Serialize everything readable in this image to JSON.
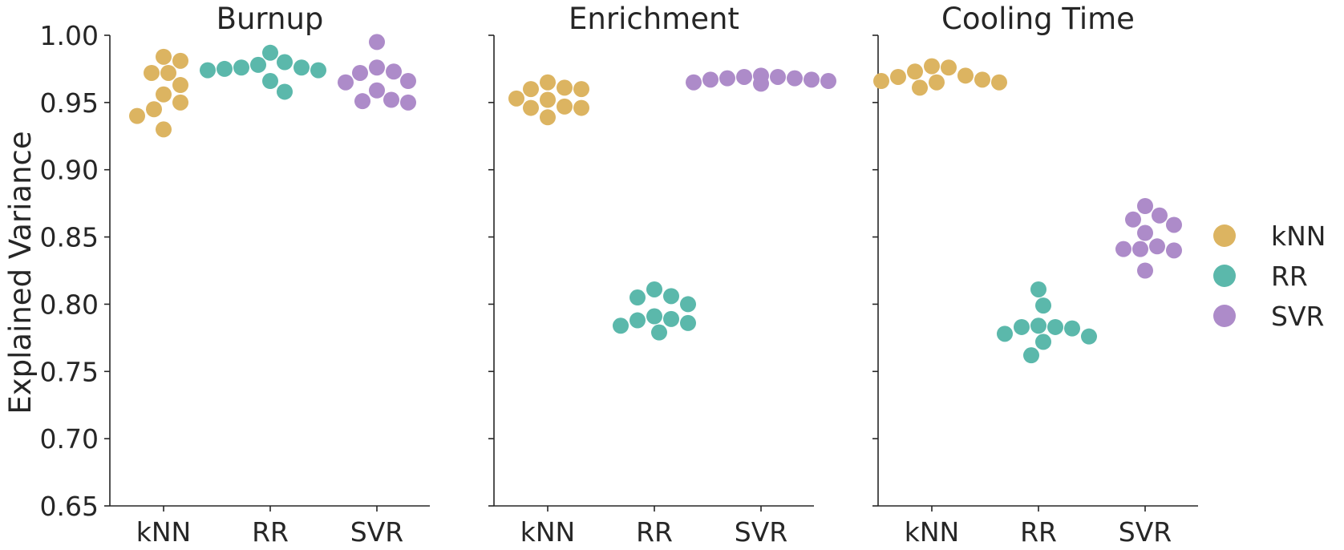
{
  "chart_data": {
    "type": "scatter",
    "subtype": "swarm",
    "ylabel": "Explained Variance",
    "ylim": [
      0.65,
      1.0
    ],
    "yticks": [
      "0.65",
      "0.70",
      "0.75",
      "0.80",
      "0.85",
      "0.90",
      "0.95",
      "1.00"
    ],
    "categories": [
      "kNN",
      "RR",
      "SVR"
    ],
    "colors": {
      "kNN": "#dcb461",
      "RR": "#5bb8ab",
      "SVR": "#ad8bc9"
    },
    "legend": {
      "placement": "right",
      "entries": [
        "kNN",
        "RR",
        "SVR"
      ]
    },
    "grid": false,
    "panels": [
      {
        "title": "Burnup",
        "series": [
          {
            "name": "kNN",
            "values": [
              0.984,
              0.981,
              0.972,
              0.972,
              0.963,
              0.956,
              0.95,
              0.945,
              0.94,
              0.93
            ]
          },
          {
            "name": "RR",
            "values": [
              0.987,
              0.98,
              0.978,
              0.976,
              0.976,
              0.975,
              0.974,
              0.974,
              0.966,
              0.958
            ]
          },
          {
            "name": "SVR",
            "values": [
              0.995,
              0.976,
              0.973,
              0.972,
              0.966,
              0.965,
              0.959,
              0.952,
              0.951,
              0.95
            ]
          }
        ]
      },
      {
        "title": "Enrichment",
        "series": [
          {
            "name": "kNN",
            "values": [
              0.965,
              0.961,
              0.96,
              0.96,
              0.953,
              0.952,
              0.947,
              0.946,
              0.946,
              0.939
            ]
          },
          {
            "name": "RR",
            "values": [
              0.811,
              0.806,
              0.805,
              0.8,
              0.791,
              0.789,
              0.788,
              0.786,
              0.784,
              0.779
            ]
          },
          {
            "name": "SVR",
            "values": [
              0.97,
              0.969,
              0.969,
              0.968,
              0.968,
              0.967,
              0.967,
              0.966,
              0.965,
              0.964
            ]
          }
        ]
      },
      {
        "title": "Cooling Time",
        "series": [
          {
            "name": "kNN",
            "values": [
              0.977,
              0.976,
              0.973,
              0.97,
              0.969,
              0.967,
              0.966,
              0.965,
              0.965,
              0.961
            ]
          },
          {
            "name": "RR",
            "values": [
              0.811,
              0.799,
              0.784,
              0.783,
              0.783,
              0.782,
              0.778,
              0.776,
              0.772,
              0.762
            ]
          },
          {
            "name": "SVR",
            "values": [
              0.873,
              0.866,
              0.863,
              0.859,
              0.853,
              0.843,
              0.841,
              0.841,
              0.84,
              0.825
            ]
          }
        ]
      }
    ]
  }
}
